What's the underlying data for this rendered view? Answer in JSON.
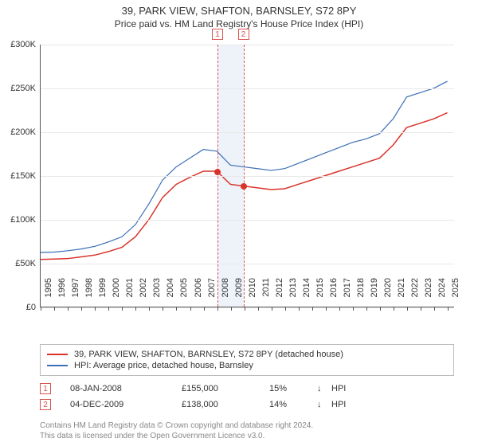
{
  "title": "39, PARK VIEW, SHAFTON, BARNSLEY, S72 8PY",
  "subtitle": "Price paid vs. HM Land Registry's House Price Index (HPI)",
  "chart": {
    "type": "line",
    "background_color": "#ffffff",
    "grid_color": "#e8e8e8",
    "axis_color": "#555555",
    "ylim": [
      0,
      300000
    ],
    "ytick_step": 50000,
    "ytick_labels": [
      "£0",
      "£50K",
      "£100K",
      "£150K",
      "£200K",
      "£250K",
      "£300K"
    ],
    "x_years": [
      1995,
      1996,
      1997,
      1998,
      1999,
      2000,
      2001,
      2002,
      2003,
      2004,
      2005,
      2006,
      2007,
      2008,
      2009,
      2010,
      2011,
      2012,
      2013,
      2014,
      2015,
      2016,
      2017,
      2018,
      2019,
      2020,
      2021,
      2022,
      2023,
      2024,
      2025
    ],
    "x_domain": [
      1995,
      2025.5
    ],
    "series": [
      {
        "name": "property",
        "label": "39, PARK VIEW, SHAFTON, BARNSLEY, S72 8PY (detached house)",
        "color": "#d9342b",
        "line_width": 1.5,
        "data": [
          [
            1995,
            54000
          ],
          [
            1996,
            54500
          ],
          [
            1997,
            55000
          ],
          [
            1998,
            57000
          ],
          [
            1999,
            59000
          ],
          [
            2000,
            63000
          ],
          [
            2001,
            68000
          ],
          [
            2002,
            80000
          ],
          [
            2003,
            100000
          ],
          [
            2004,
            125000
          ],
          [
            2005,
            140000
          ],
          [
            2006,
            148000
          ],
          [
            2007,
            155000
          ],
          [
            2008,
            155000
          ],
          [
            2009,
            140000
          ],
          [
            2010,
            138000
          ],
          [
            2011,
            136000
          ],
          [
            2012,
            134000
          ],
          [
            2013,
            135000
          ],
          [
            2014,
            140000
          ],
          [
            2015,
            145000
          ],
          [
            2016,
            150000
          ],
          [
            2017,
            155000
          ],
          [
            2018,
            160000
          ],
          [
            2019,
            165000
          ],
          [
            2020,
            170000
          ],
          [
            2021,
            185000
          ],
          [
            2022,
            205000
          ],
          [
            2023,
            210000
          ],
          [
            2024,
            215000
          ],
          [
            2025,
            222000
          ]
        ]
      },
      {
        "name": "hpi",
        "label": "HPI: Average price, detached house, Barnsley",
        "color": "#3b6fb6",
        "line_width": 1.2,
        "data": [
          [
            1995,
            62000
          ],
          [
            1996,
            62500
          ],
          [
            1997,
            64000
          ],
          [
            1998,
            66000
          ],
          [
            1999,
            69000
          ],
          [
            2000,
            74000
          ],
          [
            2001,
            80000
          ],
          [
            2002,
            94000
          ],
          [
            2003,
            118000
          ],
          [
            2004,
            145000
          ],
          [
            2005,
            160000
          ],
          [
            2006,
            170000
          ],
          [
            2007,
            180000
          ],
          [
            2008,
            178000
          ],
          [
            2009,
            162000
          ],
          [
            2010,
            160000
          ],
          [
            2011,
            158000
          ],
          [
            2012,
            156000
          ],
          [
            2013,
            158000
          ],
          [
            2014,
            164000
          ],
          [
            2015,
            170000
          ],
          [
            2016,
            176000
          ],
          [
            2017,
            182000
          ],
          [
            2018,
            188000
          ],
          [
            2019,
            192000
          ],
          [
            2020,
            198000
          ],
          [
            2021,
            215000
          ],
          [
            2022,
            240000
          ],
          [
            2023,
            245000
          ],
          [
            2024,
            250000
          ],
          [
            2025,
            258000
          ]
        ]
      }
    ],
    "marker_band": {
      "from": 2008.02,
      "to": 2009.93,
      "color": "#eef3fa"
    },
    "marker_lines": [
      {
        "at": 2008.02,
        "color": "#d9534f"
      },
      {
        "at": 2009.93,
        "color": "#d9534f"
      }
    ],
    "marker_labels": [
      {
        "n": "1",
        "at": 2008.02
      },
      {
        "n": "2",
        "at": 2009.93
      }
    ],
    "sale_points": [
      {
        "at": 2008.02,
        "value": 155000,
        "color": "#d9342b"
      },
      {
        "at": 2009.93,
        "value": 138000,
        "color": "#d9342b"
      }
    ]
  },
  "legend": {
    "items": [
      {
        "color": "#d9342b",
        "label_key": "chart.series.0.label"
      },
      {
        "color": "#3b6fb6",
        "label_key": "chart.series.1.label"
      }
    ]
  },
  "sales": [
    {
      "n": "1",
      "date": "08-JAN-2008",
      "price": "£155,000",
      "pct": "15%",
      "arrow": "↓",
      "vs": "HPI"
    },
    {
      "n": "2",
      "date": "04-DEC-2009",
      "price": "£138,000",
      "pct": "14%",
      "arrow": "↓",
      "vs": "HPI"
    }
  ],
  "footer": {
    "line1": "Contains HM Land Registry data © Crown copyright and database right 2024.",
    "line2": "This data is licensed under the Open Government Licence v3.0."
  }
}
